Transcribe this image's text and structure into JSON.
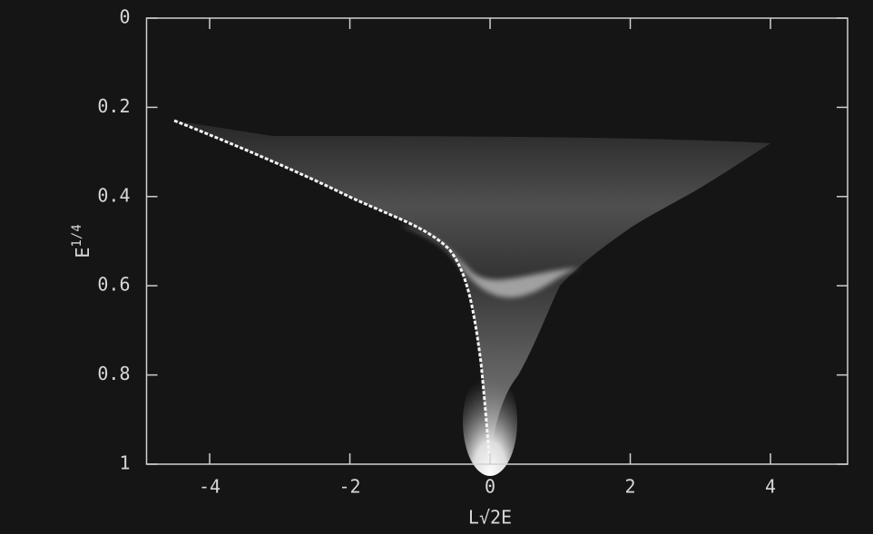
{
  "chart_data": {
    "type": "density",
    "xlabel": "L√2E",
    "ylabel": "E",
    "ylabel_sup": "1/4",
    "xlim": [
      -4.9,
      5.1
    ],
    "ylim": [
      0,
      1
    ],
    "xticks": [
      -4,
      -2,
      0,
      2,
      4
    ],
    "yticks": [
      0,
      0.2,
      0.4,
      0.6,
      0.8,
      1
    ],
    "y_inverted": true
  }
}
